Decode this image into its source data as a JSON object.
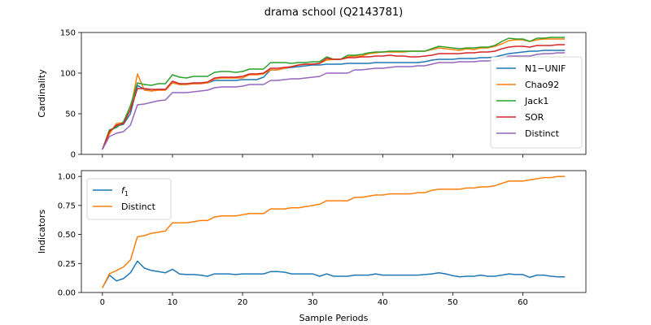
{
  "figure": {
    "title": "drama school (Q2143781)"
  },
  "chart_data": [
    {
      "type": "line",
      "title": "drama school (Q2143781)",
      "xlabel": "",
      "ylabel": "Cardinality",
      "xlim": [
        -3,
        69
      ],
      "ylim": [
        0,
        150
      ],
      "xticks": [
        0,
        10,
        20,
        30,
        40,
        50,
        60
      ],
      "yticks": [
        0,
        50,
        100,
        150
      ],
      "legend": "center-right",
      "grid": false,
      "x": [
        0,
        1,
        2,
        3,
        4,
        5,
        6,
        7,
        8,
        9,
        10,
        11,
        12,
        13,
        14,
        15,
        16,
        17,
        18,
        19,
        20,
        21,
        22,
        23,
        24,
        25,
        26,
        27,
        28,
        29,
        30,
        31,
        32,
        33,
        34,
        35,
        36,
        37,
        38,
        39,
        40,
        41,
        42,
        43,
        44,
        45,
        46,
        47,
        48,
        49,
        50,
        51,
        52,
        53,
        54,
        55,
        56,
        57,
        58,
        59,
        60,
        61,
        62,
        63,
        64,
        65,
        66
      ],
      "series": [
        {
          "name": "N1−UNIF",
          "color": "#1f77b4",
          "values": [
            6,
            27,
            35,
            37,
            50,
            85,
            80,
            78,
            80,
            80,
            88,
            86,
            86,
            87,
            87,
            88,
            91,
            91,
            91,
            91,
            92,
            92,
            92,
            95,
            104,
            104,
            106,
            107,
            108,
            109,
            110,
            110,
            111,
            111,
            111,
            112,
            112,
            112,
            112,
            113,
            113,
            113,
            113,
            113,
            113,
            113,
            114,
            116,
            117,
            117,
            117,
            118,
            118,
            118,
            119,
            119,
            120,
            122,
            124,
            125,
            126,
            127,
            127,
            128,
            128,
            128,
            128
          ]
        },
        {
          "name": "Chao92",
          "color": "#ff7f0e",
          "values": [
            6,
            25,
            38,
            39,
            55,
            99,
            79,
            78,
            79,
            79,
            88,
            86,
            86,
            87,
            87,
            88,
            93,
            94,
            94,
            94,
            94,
            98,
            98,
            99,
            104,
            104,
            106,
            108,
            110,
            111,
            111,
            112,
            116,
            117,
            117,
            120,
            121,
            121,
            124,
            125,
            126,
            126,
            126,
            126,
            127,
            127,
            127,
            129,
            131,
            130,
            129,
            128,
            130,
            129,
            131,
            131,
            133,
            136,
            140,
            141,
            141,
            139,
            141,
            142,
            142,
            142,
            142
          ]
        },
        {
          "name": "Jack1",
          "color": "#2ca02c",
          "values": [
            6,
            30,
            33,
            40,
            60,
            88,
            86,
            85,
            87,
            87,
            98,
            95,
            94,
            96,
            96,
            96,
            101,
            102,
            102,
            101,
            102,
            105,
            105,
            105,
            113,
            113,
            113,
            112,
            113,
            113,
            114,
            114,
            120,
            117,
            117,
            122,
            122,
            123,
            125,
            126,
            126,
            127,
            127,
            127,
            127,
            127,
            127,
            130,
            133,
            132,
            131,
            130,
            131,
            131,
            132,
            132,
            134,
            139,
            143,
            142,
            142,
            139,
            143,
            143,
            144,
            144,
            144
          ]
        },
        {
          "name": "SOR",
          "color": "#d62728",
          "values": [
            6,
            28,
            36,
            38,
            55,
            81,
            81,
            80,
            80,
            80,
            90,
            87,
            87,
            88,
            88,
            89,
            94,
            95,
            95,
            95,
            96,
            99,
            99,
            100,
            106,
            106,
            107,
            108,
            110,
            111,
            111,
            112,
            118,
            117,
            117,
            119,
            119,
            120,
            120,
            121,
            121,
            122,
            121,
            121,
            120,
            120,
            121,
            122,
            124,
            124,
            124,
            124,
            125,
            125,
            126,
            126,
            127,
            130,
            132,
            133,
            133,
            132,
            134,
            134,
            134,
            135,
            135
          ]
        },
        {
          "name": "Distinct",
          "color": "#9467bd",
          "values": [
            6,
            22,
            26,
            28,
            36,
            61,
            62,
            64,
            66,
            67,
            76,
            76,
            76,
            77,
            78,
            79,
            82,
            83,
            83,
            83,
            84,
            86,
            86,
            86,
            91,
            91,
            92,
            93,
            93,
            94,
            95,
            96,
            100,
            100,
            100,
            100,
            104,
            104,
            105,
            106,
            106,
            107,
            108,
            108,
            108,
            109,
            109,
            111,
            113,
            113,
            113,
            114,
            114,
            114,
            115,
            115,
            116,
            118,
            121,
            121,
            121,
            121,
            123,
            124,
            124,
            125,
            125
          ]
        }
      ]
    },
    {
      "type": "line",
      "title": "",
      "xlabel": "Sample Periods",
      "ylabel": "Indicators",
      "xlim": [
        -3,
        69
      ],
      "ylim": [
        0,
        1.05
      ],
      "xticks": [
        0,
        10,
        20,
        30,
        40,
        50,
        60
      ],
      "yticks": [
        0.0,
        0.25,
        0.5,
        0.75,
        1.0
      ],
      "legend": "top-left",
      "grid": false,
      "x": [
        0,
        1,
        2,
        3,
        4,
        5,
        6,
        7,
        8,
        9,
        10,
        11,
        12,
        13,
        14,
        15,
        16,
        17,
        18,
        19,
        20,
        21,
        22,
        23,
        24,
        25,
        26,
        27,
        28,
        29,
        30,
        31,
        32,
        33,
        34,
        35,
        36,
        37,
        38,
        39,
        40,
        41,
        42,
        43,
        44,
        45,
        46,
        47,
        48,
        49,
        50,
        51,
        52,
        53,
        54,
        55,
        56,
        57,
        58,
        59,
        60,
        61,
        62,
        63,
        64,
        65,
        66
      ],
      "series": [
        {
          "name": "f1",
          "color": "#1f77b4",
          "values": [
            0.04,
            0.15,
            0.1,
            0.12,
            0.17,
            0.27,
            0.21,
            0.19,
            0.18,
            0.17,
            0.2,
            0.16,
            0.155,
            0.155,
            0.15,
            0.14,
            0.16,
            0.16,
            0.16,
            0.155,
            0.16,
            0.16,
            0.16,
            0.16,
            0.18,
            0.18,
            0.175,
            0.16,
            0.16,
            0.16,
            0.16,
            0.14,
            0.16,
            0.14,
            0.14,
            0.14,
            0.15,
            0.15,
            0.15,
            0.16,
            0.15,
            0.15,
            0.15,
            0.15,
            0.15,
            0.15,
            0.155,
            0.16,
            0.17,
            0.16,
            0.145,
            0.135,
            0.14,
            0.14,
            0.15,
            0.14,
            0.14,
            0.15,
            0.16,
            0.155,
            0.155,
            0.13,
            0.15,
            0.15,
            0.14,
            0.135,
            0.135
          ]
        },
        {
          "name": "Distinct",
          "color": "#ff7f0e",
          "values": [
            0.04,
            0.16,
            0.19,
            0.22,
            0.28,
            0.48,
            0.49,
            0.51,
            0.52,
            0.53,
            0.6,
            0.6,
            0.6,
            0.61,
            0.62,
            0.62,
            0.65,
            0.66,
            0.66,
            0.66,
            0.67,
            0.68,
            0.68,
            0.68,
            0.72,
            0.72,
            0.72,
            0.73,
            0.73,
            0.74,
            0.75,
            0.76,
            0.79,
            0.79,
            0.79,
            0.79,
            0.82,
            0.82,
            0.83,
            0.84,
            0.84,
            0.85,
            0.85,
            0.85,
            0.85,
            0.86,
            0.86,
            0.88,
            0.89,
            0.89,
            0.89,
            0.89,
            0.9,
            0.9,
            0.91,
            0.91,
            0.92,
            0.94,
            0.96,
            0.96,
            0.96,
            0.97,
            0.98,
            0.99,
            0.99,
            1.0,
            1.0
          ]
        }
      ]
    }
  ]
}
